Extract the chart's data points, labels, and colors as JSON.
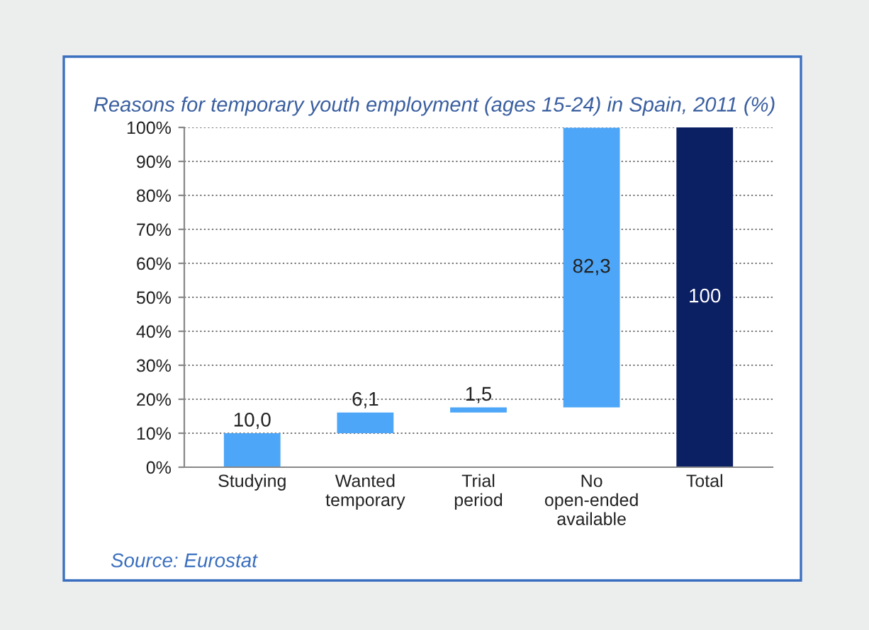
{
  "chart_data": {
    "type": "bar",
    "title": "Reasons for temporary youth employment (ages 15-24) in Spain, 2011 (%)",
    "categories": [
      "Studying",
      "Wanted\ntemporary",
      "Trial\nperiod",
      "No\nopen-ended\navailable",
      "Total"
    ],
    "values": [
      10.0,
      6.1,
      1.5,
      82.3,
      100
    ],
    "base": [
      0,
      10.0,
      16.1,
      17.6,
      0
    ],
    "colors": [
      "#4da6f7",
      "#4da6f7",
      "#4da6f7",
      "#4da6f7",
      "#0b1f63"
    ],
    "value_labels": [
      "10,0",
      "6,1",
      "1,5",
      "82,3",
      "100"
    ],
    "ylim": [
      0,
      100
    ],
    "yticks": [
      {
        "value": 0,
        "label": "0%"
      },
      {
        "value": 10,
        "label": "10%"
      },
      {
        "value": 20,
        "label": "20%"
      },
      {
        "value": 30,
        "label": "30%"
      },
      {
        "value": 40,
        "label": "40%"
      },
      {
        "value": 50,
        "label": "50%"
      },
      {
        "value": 60,
        "label": "60%"
      },
      {
        "value": 70,
        "label": "70%"
      },
      {
        "value": 80,
        "label": "80%"
      },
      {
        "value": 90,
        "label": "90%"
      },
      {
        "value": 100,
        "label": "100%"
      }
    ],
    "grid": "y",
    "annotations": [
      "Source: Eurostat"
    ]
  }
}
